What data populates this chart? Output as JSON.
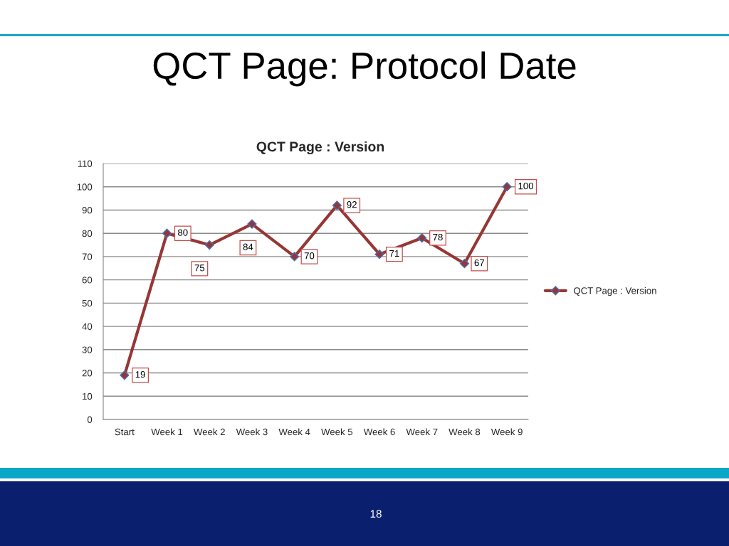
{
  "chart_data": {
    "type": "line",
    "title": "QCT Page: Protocol Date",
    "subtitle": "QCT Page : Version",
    "categories": [
      "Start",
      "Week 1",
      "Week 2",
      "Week 3",
      "Week 4",
      "Week 5",
      "Week 6",
      "Week 7",
      "Week 8",
      "Week 9"
    ],
    "series": [
      {
        "name": "QCT Page : Version",
        "color": "#953735",
        "values": [
          19,
          80,
          75,
          84,
          70,
          92,
          71,
          78,
          67,
          100
        ]
      }
    ],
    "ylim": [
      0,
      110
    ],
    "yticks": [
      0,
      10,
      20,
      30,
      40,
      50,
      60,
      70,
      80,
      90,
      100,
      110
    ],
    "grid": "y",
    "legend": "right",
    "marker": "diamond",
    "line_style": "solid",
    "data_labels": true,
    "annotations": [
      "18"
    ]
  }
}
